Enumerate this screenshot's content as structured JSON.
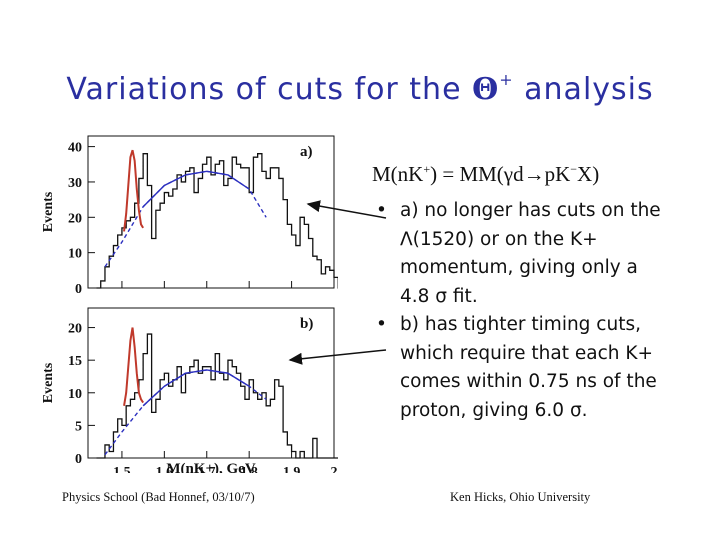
{
  "title": {
    "prefix": "Variations of cuts for the ",
    "symbol": "Θ",
    "superscript": "+",
    "suffix": " analysis"
  },
  "formula": {
    "a": "M(nK",
    "b": "+",
    "c": ") = MM(γd",
    "arrow": "→",
    "d": "pK",
    "e": "−",
    "f": "X)"
  },
  "bullets": [
    {
      "dot": "•",
      "text": "a) no longer has cuts on the Λ(1520) or on the K+ momentum, giving only a 4.8 σ fit."
    },
    {
      "dot": "•",
      "text": "b) has tighter timing cuts, which require that each K+ comes within 0.75 ns of the proton, giving 6.0 σ."
    }
  ],
  "footer": {
    "left": "Physics School (Bad Honnef, 03/10/7)",
    "right": "Ken Hicks, Ohio University"
  },
  "colors": {
    "title": "#2a2fa0",
    "histogram": "#111111",
    "peak_fit": "#c0392b",
    "background_fit": "#2b2fbf",
    "arrow": "#111111"
  },
  "chart_data": [
    {
      "type": "line",
      "panel_label": "a)",
      "xlabel": "M(nK+), GeV",
      "ylabel": "Events",
      "xlim": [
        1.42,
        2.0
      ],
      "ylim": [
        0,
        43
      ],
      "x_ticks": [
        "1.5",
        "1.6",
        "1.7",
        "1.8",
        "1.9",
        "2"
      ],
      "y_ticks": [
        "0",
        "10",
        "20",
        "30",
        "40"
      ],
      "bin_start": 1.44,
      "bin_width": 0.01,
      "hist_values": [
        0,
        2,
        6,
        9,
        12,
        15,
        17,
        19,
        20,
        24,
        31,
        38,
        29,
        14,
        22,
        24,
        27,
        26,
        28,
        32,
        30,
        33,
        34,
        27,
        31,
        35,
        37,
        32,
        35,
        36,
        29,
        31,
        37,
        35,
        34,
        34,
        27,
        37,
        38,
        33,
        31,
        34,
        34,
        31,
        25,
        18,
        15,
        12,
        20,
        18,
        14,
        9,
        8,
        4,
        6,
        5,
        3,
        0
      ],
      "peak_fit": {
        "x": [
          1.505,
          1.51,
          1.515,
          1.52,
          1.525,
          1.53,
          1.535,
          1.54,
          1.545,
          1.55
        ],
        "y": [
          16,
          21,
          29,
          37,
          39,
          36,
          28,
          22,
          18,
          17
        ]
      },
      "background_fit": {
        "x": [
          1.46,
          1.5,
          1.55,
          1.6,
          1.65,
          1.7,
          1.75,
          1.8,
          1.84
        ],
        "y": [
          6,
          13,
          23,
          29,
          32,
          33,
          32,
          28,
          20
        ]
      }
    },
    {
      "type": "line",
      "panel_label": "b)",
      "xlabel": "M(nK+), GeV",
      "ylabel": "Events",
      "xlim": [
        1.42,
        2.0
      ],
      "ylim": [
        0,
        23
      ],
      "x_ticks": [
        "1.5",
        "1.6",
        "1.7",
        "1.8",
        "1.9",
        "2"
      ],
      "y_ticks": [
        "0",
        "5",
        "10",
        "15",
        "20"
      ],
      "bin_start": 1.44,
      "bin_width": 0.01,
      "hist_values": [
        0,
        0,
        2,
        1,
        4,
        6,
        5,
        8,
        9,
        10,
        12,
        16,
        19,
        7,
        9,
        12,
        13,
        11,
        12,
        14,
        10,
        13,
        14,
        15,
        13,
        14,
        14,
        12,
        16,
        13,
        12,
        15,
        14,
        13,
        11,
        9,
        12,
        10,
        9,
        10,
        8,
        9,
        12,
        11,
        4,
        2,
        1,
        0,
        1,
        0,
        0,
        3,
        0,
        0,
        0,
        0,
        0,
        0
      ],
      "peak_fit": {
        "x": [
          1.505,
          1.51,
          1.515,
          1.52,
          1.525,
          1.53,
          1.535,
          1.54,
          1.545,
          1.55
        ],
        "y": [
          8,
          10,
          14,
          18,
          20,
          17,
          13,
          10,
          9,
          8.5
        ]
      },
      "background_fit": {
        "x": [
          1.46,
          1.5,
          1.55,
          1.6,
          1.65,
          1.7,
          1.75,
          1.8,
          1.84
        ],
        "y": [
          0.5,
          4,
          8,
          11,
          13,
          13.5,
          13,
          11,
          9
        ]
      }
    }
  ]
}
